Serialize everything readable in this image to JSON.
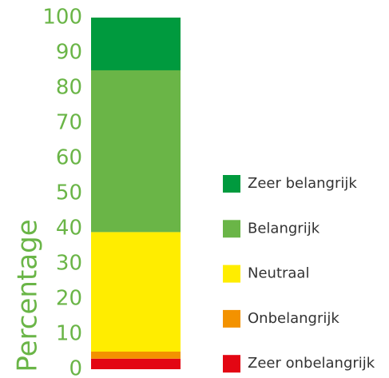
{
  "chart_data": {
    "type": "stacked-bar",
    "ylabel": "Percentage",
    "categories": [
      null
    ],
    "series": [
      {
        "name": "Zeer onbelangrijk",
        "color": "#e30613",
        "values": [
          3
        ]
      },
      {
        "name": "Onbelangrijk",
        "color": "#f39200",
        "values": [
          2
        ]
      },
      {
        "name": "Neutraal",
        "color": "#ffed00",
        "values": [
          34
        ]
      },
      {
        "name": "Belangrijk",
        "color": "#6ab547",
        "values": [
          46
        ]
      },
      {
        "name": "Zeer belangrijk",
        "color": "#009a3e",
        "values": [
          15
        ]
      }
    ],
    "ylim": [
      0,
      100
    ],
    "yticks": [
      0,
      10,
      20,
      30,
      40,
      50,
      60,
      70,
      80,
      90,
      100
    ],
    "grid": false,
    "legend": "right"
  }
}
